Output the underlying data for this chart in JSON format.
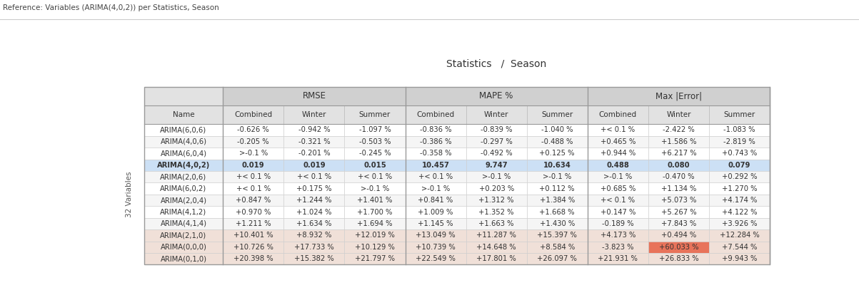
{
  "title": "Statistics   /  Season",
  "reference_label": "Reference: Variables (ARIMA(4,0,2)) per Statistics, Season",
  "side_label": "32 Variables",
  "col_groups": [
    "RMSE",
    "MAPE %",
    "Max |Error|"
  ],
  "col_headers": [
    "Name",
    "Combined",
    "Winter",
    "Summer",
    "Combined",
    "Winter",
    "Summer",
    "Combined",
    "Winter",
    "Summer"
  ],
  "rows": [
    [
      "ARIMA(6,0,6)",
      "-0.626 %",
      "-0.942 %",
      "-1.097 %",
      "-0.836 %",
      "-0.839 %",
      "-1.040 %",
      "+< 0.1 %",
      "-2.422 %",
      "-1.083 %"
    ],
    [
      "ARIMA(4,0,6)",
      "-0.205 %",
      "-0.321 %",
      "-0.503 %",
      "-0.386 %",
      "-0.297 %",
      "-0.488 %",
      "+0.465 %",
      "+1.586 %",
      "-2.819 %"
    ],
    [
      "ARIMA(6,0,4)",
      ">-0.1 %",
      "-0.201 %",
      "-0.245 %",
      "-0.358 %",
      "-0.492 %",
      "+0.125 %",
      "+0.944 %",
      "+6.217 %",
      "+0.743 %"
    ],
    [
      "ARIMA(4,0,2)",
      "0.019",
      "0.019",
      "0.015",
      "10.457",
      "9.747",
      "10.634",
      "0.488",
      "0.080",
      "0.079"
    ],
    [
      "ARIMA(2,0,6)",
      "+< 0.1 %",
      "+< 0.1 %",
      "+< 0.1 %",
      "+< 0.1 %",
      ">-0.1 %",
      ">-0.1 %",
      ">-0.1 %",
      "-0.470 %",
      "+0.292 %"
    ],
    [
      "ARIMA(6,0,2)",
      "+< 0.1 %",
      "+0.175 %",
      ">-0.1 %",
      ">-0.1 %",
      "+0.203 %",
      "+0.112 %",
      "+0.685 %",
      "+1.134 %",
      "+1.270 %"
    ],
    [
      "ARIMA(2,0,4)",
      "+0.847 %",
      "+1.244 %",
      "+1.401 %",
      "+0.841 %",
      "+1.312 %",
      "+1.384 %",
      "+< 0.1 %",
      "+5.073 %",
      "+4.174 %"
    ],
    [
      "ARIMA(4,1,2)",
      "+0.970 %",
      "+1.024 %",
      "+1.700 %",
      "+1.009 %",
      "+1.352 %",
      "+1.668 %",
      "+0.147 %",
      "+5.267 %",
      "+4.122 %"
    ],
    [
      "ARIMA(4,1,4)",
      "+1.211 %",
      "+1.634 %",
      "+1.694 %",
      "+1.145 %",
      "+1.663 %",
      "+1.430 %",
      "-0.189 %",
      "+7.843 %",
      "+3.926 %"
    ],
    [
      "ARIMA(2,1,0)",
      "+10.401 %",
      "+8.932 %",
      "+12.019 %",
      "+13.049 %",
      "+11.287 %",
      "+15.397 %",
      "+4.173 %",
      "+0.494 %",
      "+12.284 %"
    ],
    [
      "ARIMA(0,0,0)",
      "+10.726 %",
      "+17.733 %",
      "+10.129 %",
      "+10.739 %",
      "+14.648 %",
      "+8.584 %",
      "-3.823 %",
      "+60.033 %",
      "+7.544 %"
    ],
    [
      "ARIMA(0,1,0)",
      "+20.398 %",
      "+15.382 %",
      "+21.797 %",
      "+22.549 %",
      "+17.801 %",
      "+26.097 %",
      "+21.931 %",
      "+26.833 %",
      "+9.943 %"
    ]
  ],
  "highlight_row": 3,
  "highlight_row_color": "#cce0f5",
  "highlight_cell_row": 10,
  "highlight_cell_col": 8,
  "highlight_cell_color": "#e8735a",
  "header_bg": "#e2e2e2",
  "group_header_bg": "#d0d0d0",
  "row_colors": [
    "#ffffff",
    "#f5f5f5",
    "#ffffff",
    "#cce0f5",
    "#f5f5f5",
    "#ffffff",
    "#f5f5f5",
    "#ffffff",
    "#f5f5f5",
    "#f0e0d8",
    "#f0e0d8",
    "#f0e0d8"
  ],
  "border_color": "#bbbbbb",
  "text_color": "#333333",
  "col_widths_rel": [
    1.3,
    1.0,
    1.0,
    1.0,
    1.0,
    1.0,
    1.0,
    1.0,
    1.0,
    1.0
  ]
}
